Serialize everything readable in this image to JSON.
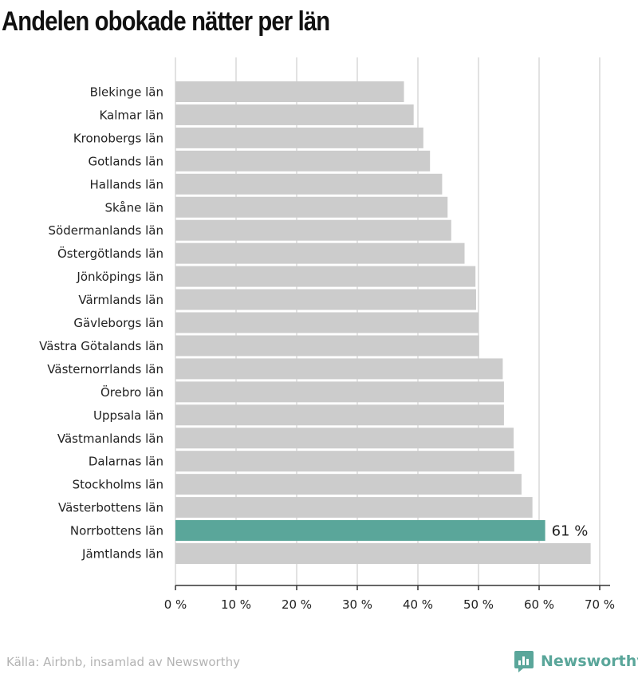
{
  "title": "Andelen obokade nätter per län",
  "footer": {
    "source": "Källa: Airbnb, insamlad av Newsworthy",
    "brand": "Newsworthy",
    "brand_icon": "newsworthy-chart-logo-icon"
  },
  "colors": {
    "bar": "#cccccc",
    "highlight": "#5aa69a",
    "grid": "#d9d9d9",
    "axis": "#333333",
    "text": "#222222"
  },
  "chart_data": {
    "type": "bar",
    "orientation": "horizontal",
    "title": "Andelen obokade nätter per län",
    "xlabel": "",
    "ylabel": "",
    "xlim": [
      0,
      70
    ],
    "x_ticks": [
      0,
      10,
      20,
      30,
      40,
      50,
      60,
      70
    ],
    "tick_labels": [
      "0 %",
      "10 %",
      "20 %",
      "30 %",
      "40 %",
      "50 %",
      "60 %",
      "70 %"
    ],
    "grid": true,
    "categories": [
      "Blekinge län",
      "Kalmar län",
      "Kronobergs län",
      "Gotlands län",
      "Hallands län",
      "Skåne län",
      "Södermanlands län",
      "Östergötlands län",
      "Jönköpings län",
      "Värmlands län",
      "Gävleborgs län",
      "Västra Götalands län",
      "Västernorrlands län",
      "Örebro län",
      "Uppsala län",
      "Västmanlands län",
      "Dalarnas län",
      "Stockholms län",
      "Västerbottens län",
      "Norrbottens län",
      "Jämtlands län"
    ],
    "values": [
      37.7,
      39.3,
      40.9,
      42,
      44,
      44.9,
      45.5,
      47.7,
      49.5,
      49.6,
      50,
      50.1,
      54,
      54.2,
      54.2,
      55.8,
      55.9,
      57.1,
      58.9,
      61,
      68.5
    ],
    "highlight": {
      "category": "Norrbottens län",
      "label": "61 %"
    }
  }
}
